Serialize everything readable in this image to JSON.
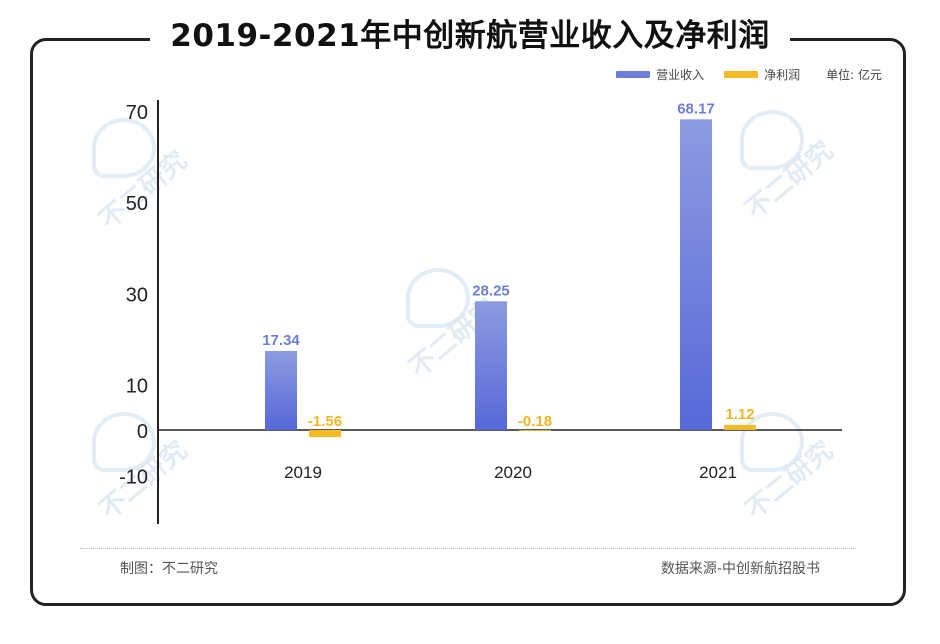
{
  "title": "2019-2021年中创新航营业收入及净利润",
  "legend": {
    "items": [
      {
        "label": "营业收入",
        "color": "#6b7fd7"
      },
      {
        "label": "净利润",
        "color": "#f6b928"
      }
    ],
    "unit": "单位: 亿元"
  },
  "chart_data": {
    "type": "bar",
    "categories": [
      "2019",
      "2020",
      "2021"
    ],
    "series": [
      {
        "name": "营业收入",
        "values": [
          17.34,
          28.25,
          68.17
        ],
        "color": "#6b7fd7",
        "label_color": "#6b7fd7"
      },
      {
        "name": "净利润",
        "values": [
          -1.56,
          -0.18,
          1.12
        ],
        "color": "#f6b928",
        "label_color": "#f2b524"
      }
    ],
    "value_labels": {
      "营业收入": [
        "17.34",
        "28.25",
        "68.17"
      ],
      "净利润": [
        "-1.56",
        "-0.18",
        "1.12"
      ]
    },
    "yticks": [
      "70",
      "50",
      "30",
      "10",
      "0",
      "-10"
    ],
    "ytick_values": [
      70,
      50,
      30,
      10,
      0,
      -10
    ],
    "ylim": [
      -10,
      70
    ]
  },
  "footer": {
    "left": "制图：不二研究",
    "right": "数据来源-中创新航招股书"
  },
  "watermark": "不二研究"
}
